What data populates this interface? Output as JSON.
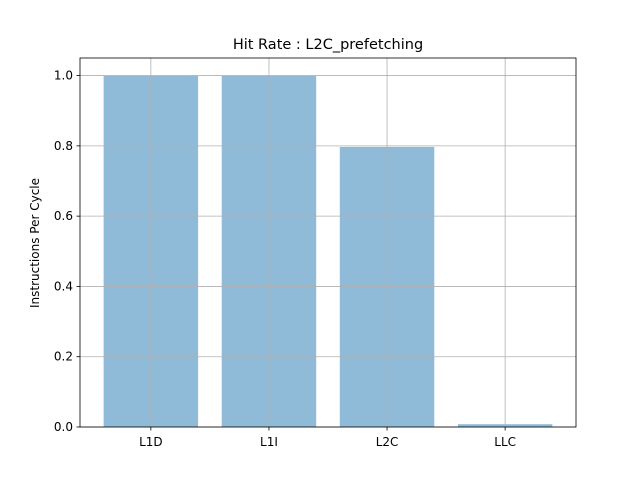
{
  "chart_data": {
    "type": "bar",
    "title": "Hit Rate : L2C_prefetching",
    "xlabel": "",
    "ylabel": "Instructions Per Cycle",
    "categories": [
      "L1D",
      "L1I",
      "L2C",
      "LLC"
    ],
    "values": [
      1.0,
      1.0,
      0.797,
      0.008
    ],
    "ylim": [
      0,
      1.05
    ],
    "yticks": [
      "0.0",
      "0.2",
      "0.4",
      "0.6",
      "0.8",
      "1.0"
    ],
    "grid": true,
    "bar_color": "#8fbad8",
    "grid_color": "#b0b0b0"
  }
}
